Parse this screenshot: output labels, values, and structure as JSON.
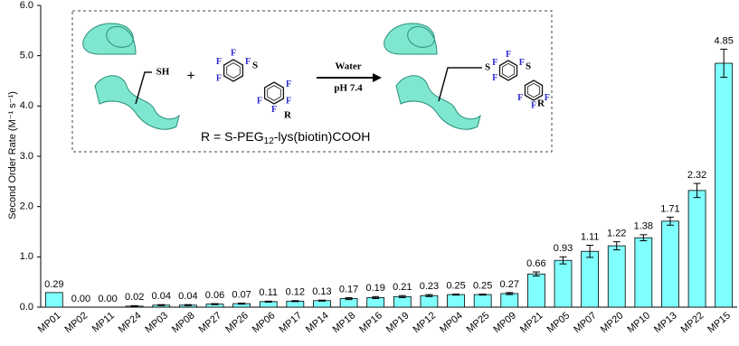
{
  "chart_data": {
    "type": "bar",
    "y_label": "Second Order Rate (M⁻¹ s⁻¹)",
    "categories": [
      "MP01",
      "MP02",
      "MP11",
      "MP24",
      "MP03",
      "MP08",
      "MP27",
      "MP26",
      "MP06",
      "MP17",
      "MP14",
      "MP18",
      "MP16",
      "MP19",
      "MP12",
      "MP04",
      "MP25",
      "MP09",
      "MP21",
      "MP05",
      "MP07",
      "MP20",
      "MP10",
      "MP13",
      "MP22",
      "MP15"
    ],
    "values": [
      0.29,
      0,
      0,
      0.02,
      0.04,
      0.04,
      0.06,
      0.07,
      0.11,
      0.12,
      0.13,
      0.17,
      0.19,
      0.21,
      0.23,
      0.25,
      0.25,
      0.27,
      0.66,
      0.93,
      1.11,
      1.22,
      1.38,
      1.71,
      2.32,
      4.85
    ],
    "value_labels": [
      "0.29",
      "0.00",
      "0.00",
      "0.02",
      "0.04",
      "0.04",
      "0.06",
      "0.07",
      "0.11",
      "0.12",
      "0.13",
      "0.17",
      "0.19",
      "0.21",
      "0.23",
      "0.25",
      "0.25",
      "0.27",
      "0.66",
      "0.93",
      "1.11",
      "1.22",
      "1.38",
      "1.71",
      "2.32",
      "4.85"
    ],
    "errors": [
      0,
      0,
      0,
      0.01,
      0.01,
      0.01,
      0.01,
      0.01,
      0.01,
      0.01,
      0.01,
      0.02,
      0.02,
      0.02,
      0.02,
      0.01,
      0.01,
      0.02,
      0.04,
      0.07,
      0.12,
      0.08,
      0.06,
      0.08,
      0.14,
      0.28
    ],
    "color": "#80ffff",
    "ylim": [
      0,
      6
    ],
    "yticks": [
      {
        "value": 0,
        "label": "0.0"
      },
      {
        "value": 1,
        "label": "1.0"
      },
      {
        "value": 2,
        "label": "2.0"
      },
      {
        "value": 3,
        "label": "3.0"
      },
      {
        "value": 4,
        "label": "4.0"
      },
      {
        "value": 5,
        "label": "5.0"
      },
      {
        "value": 6,
        "label": "6.0"
      }
    ],
    "grid": false
  },
  "scheme": {
    "thiol": "SH",
    "plus": "+",
    "condition_1": "Water",
    "condition_2": "pH 7.4",
    "fluorine": "F",
    "sulfur": "S",
    "r": "R",
    "r_definition": [
      "R = S-PEG",
      "12",
      "-lys(biotin)COOH"
    ]
  }
}
